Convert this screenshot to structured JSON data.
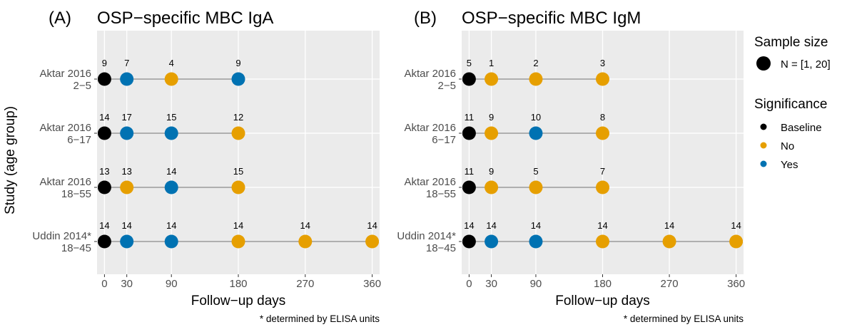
{
  "y_axis_title": "Study (age group)",
  "colors": {
    "Baseline": "#000000",
    "No": "#E69F00",
    "Yes": "#0072B2",
    "panel_bg": "#EBEBEB",
    "grid": "#ffffff",
    "segment": "#999999"
  },
  "legend": {
    "size_title": "Sample size",
    "size_label": "N = [1, 20]",
    "sig_title": "Significance",
    "sig_items": [
      "Baseline",
      "No",
      "Yes"
    ]
  },
  "chart_data": [
    {
      "type": "scatter",
      "tag": "(A)",
      "title": "OSP−specific MBC IgA",
      "xlabel": "Follow−up days",
      "ylabel": "Study (age group)",
      "note": "* determined by ELISA units",
      "xlim": [
        -10,
        370
      ],
      "x_ticks": [
        0,
        30,
        90,
        180,
        270,
        360
      ],
      "grid": true,
      "rows": [
        {
          "study": "Aktar 2016",
          "age": "2−5",
          "points": [
            {
              "day": 0,
              "n": 9,
              "sig": "Baseline"
            },
            {
              "day": 30,
              "n": 7,
              "sig": "Yes"
            },
            {
              "day": 90,
              "n": 4,
              "sig": "No"
            },
            {
              "day": 180,
              "n": 9,
              "sig": "Yes"
            }
          ]
        },
        {
          "study": "Aktar 2016",
          "age": "6−17",
          "points": [
            {
              "day": 0,
              "n": 14,
              "sig": "Baseline"
            },
            {
              "day": 30,
              "n": 17,
              "sig": "Yes"
            },
            {
              "day": 90,
              "n": 15,
              "sig": "Yes"
            },
            {
              "day": 180,
              "n": 12,
              "sig": "No"
            }
          ]
        },
        {
          "study": "Aktar 2016",
          "age": "18−55",
          "points": [
            {
              "day": 0,
              "n": 13,
              "sig": "Baseline"
            },
            {
              "day": 30,
              "n": 13,
              "sig": "No"
            },
            {
              "day": 90,
              "n": 14,
              "sig": "Yes"
            },
            {
              "day": 180,
              "n": 15,
              "sig": "No"
            }
          ]
        },
        {
          "study": "Uddin 2014*",
          "age": "18−45",
          "points": [
            {
              "day": 0,
              "n": 14,
              "sig": "Baseline"
            },
            {
              "day": 30,
              "n": 14,
              "sig": "Yes"
            },
            {
              "day": 90,
              "n": 14,
              "sig": "Yes"
            },
            {
              "day": 180,
              "n": 14,
              "sig": "No"
            },
            {
              "day": 270,
              "n": 14,
              "sig": "No"
            },
            {
              "day": 360,
              "n": 14,
              "sig": "No"
            }
          ]
        }
      ]
    },
    {
      "type": "scatter",
      "tag": "(B)",
      "title": "OSP−specific MBC IgM",
      "xlabel": "Follow−up days",
      "ylabel": "",
      "note": "* determined by ELISA units",
      "xlim": [
        -10,
        370
      ],
      "x_ticks": [
        0,
        30,
        90,
        180,
        270,
        360
      ],
      "grid": true,
      "rows": [
        {
          "study": "Aktar 2016",
          "age": "2−5",
          "points": [
            {
              "day": 0,
              "n": 5,
              "sig": "Baseline"
            },
            {
              "day": 30,
              "n": 1,
              "sig": "No"
            },
            {
              "day": 90,
              "n": 2,
              "sig": "No"
            },
            {
              "day": 180,
              "n": 3,
              "sig": "No"
            }
          ]
        },
        {
          "study": "Aktar 2016",
          "age": "6−17",
          "points": [
            {
              "day": 0,
              "n": 11,
              "sig": "Baseline"
            },
            {
              "day": 30,
              "n": 9,
              "sig": "No"
            },
            {
              "day": 90,
              "n": 10,
              "sig": "Yes"
            },
            {
              "day": 180,
              "n": 8,
              "sig": "No"
            }
          ]
        },
        {
          "study": "Aktar 2016",
          "age": "18−55",
          "points": [
            {
              "day": 0,
              "n": 11,
              "sig": "Baseline"
            },
            {
              "day": 30,
              "n": 9,
              "sig": "No"
            },
            {
              "day": 90,
              "n": 5,
              "sig": "No"
            },
            {
              "day": 180,
              "n": 7,
              "sig": "No"
            }
          ]
        },
        {
          "study": "Uddin 2014*",
          "age": "18−45",
          "points": [
            {
              "day": 0,
              "n": 14,
              "sig": "Baseline"
            },
            {
              "day": 30,
              "n": 14,
              "sig": "Yes"
            },
            {
              "day": 90,
              "n": 14,
              "sig": "Yes"
            },
            {
              "day": 180,
              "n": 14,
              "sig": "No"
            },
            {
              "day": 270,
              "n": 14,
              "sig": "No"
            },
            {
              "day": 360,
              "n": 14,
              "sig": "No"
            }
          ]
        }
      ]
    }
  ]
}
